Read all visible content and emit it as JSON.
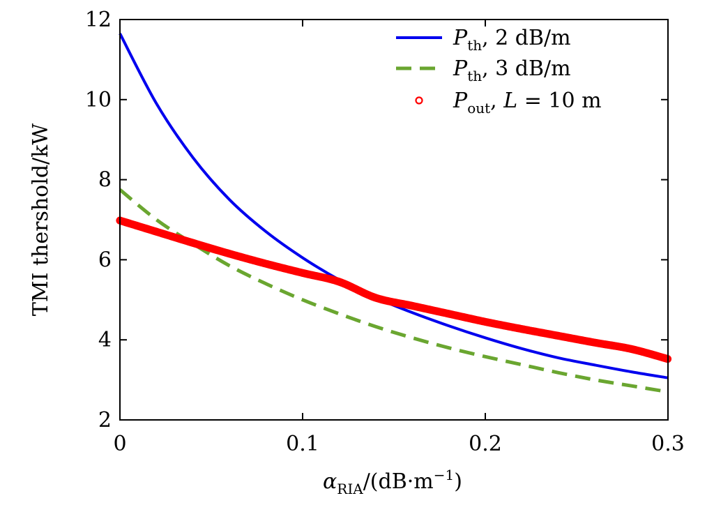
{
  "chart_data": {
    "type": "line",
    "xlabel": {
      "symbol": "α",
      "subscript": "RIA",
      "rest": "/(dB·m",
      "sup": "−1",
      "close": ")"
    },
    "ylabel": "TMI thershold/kW",
    "xlim": [
      0,
      0.3
    ],
    "ylim": [
      2,
      12
    ],
    "xticks": [
      0,
      0.1,
      0.2,
      0.3
    ],
    "xtick_labels": [
      "0",
      "0.1",
      "0.2",
      "0.3"
    ],
    "yticks": [
      2,
      4,
      6,
      8,
      10,
      12
    ],
    "ytick_labels": [
      "2",
      "4",
      "6",
      "8",
      "10",
      "12"
    ],
    "grid": false,
    "legend_position": "top-right",
    "series": [
      {
        "id": "pth2",
        "style": "solid",
        "color": "#0000ee",
        "legend": {
          "var": "P",
          "sub": "th",
          "rest": ", 2 dB/m"
        },
        "x": [
          0,
          0.02,
          0.04,
          0.06,
          0.08,
          0.1,
          0.12,
          0.14,
          0.16,
          0.18,
          0.2,
          0.22,
          0.24,
          0.26,
          0.28,
          0.3
        ],
        "y": [
          11.65,
          9.9,
          8.55,
          7.5,
          6.7,
          6.05,
          5.5,
          5.05,
          4.68,
          4.35,
          4.05,
          3.78,
          3.55,
          3.37,
          3.2,
          3.05
        ]
      },
      {
        "id": "pth3",
        "style": "dashed",
        "color": "#6aa630",
        "legend": {
          "var": "P",
          "sub": "th",
          "rest": ", 3 dB/m"
        },
        "x": [
          0,
          0.02,
          0.04,
          0.06,
          0.08,
          0.1,
          0.12,
          0.14,
          0.16,
          0.18,
          0.2,
          0.22,
          0.24,
          0.26,
          0.28,
          0.3
        ],
        "y": [
          7.75,
          7.0,
          6.4,
          5.85,
          5.4,
          5.0,
          4.65,
          4.33,
          4.05,
          3.8,
          3.58,
          3.38,
          3.18,
          3.0,
          2.85,
          2.7
        ]
      },
      {
        "id": "pout",
        "style": "markers",
        "color": "#ff0000",
        "legend": {
          "var": "P",
          "sub": "out",
          "rest": ", ",
          "var2": "L",
          "rest2": " = 10 m"
        },
        "x": [
          0,
          0.02,
          0.04,
          0.06,
          0.08,
          0.1,
          0.12,
          0.14,
          0.16,
          0.18,
          0.2,
          0.22,
          0.24,
          0.26,
          0.28,
          0.3
        ],
        "y": [
          6.98,
          6.7,
          6.42,
          6.15,
          5.9,
          5.67,
          5.45,
          5.05,
          4.85,
          4.65,
          4.45,
          4.27,
          4.1,
          3.93,
          3.77,
          3.52
        ]
      }
    ]
  }
}
